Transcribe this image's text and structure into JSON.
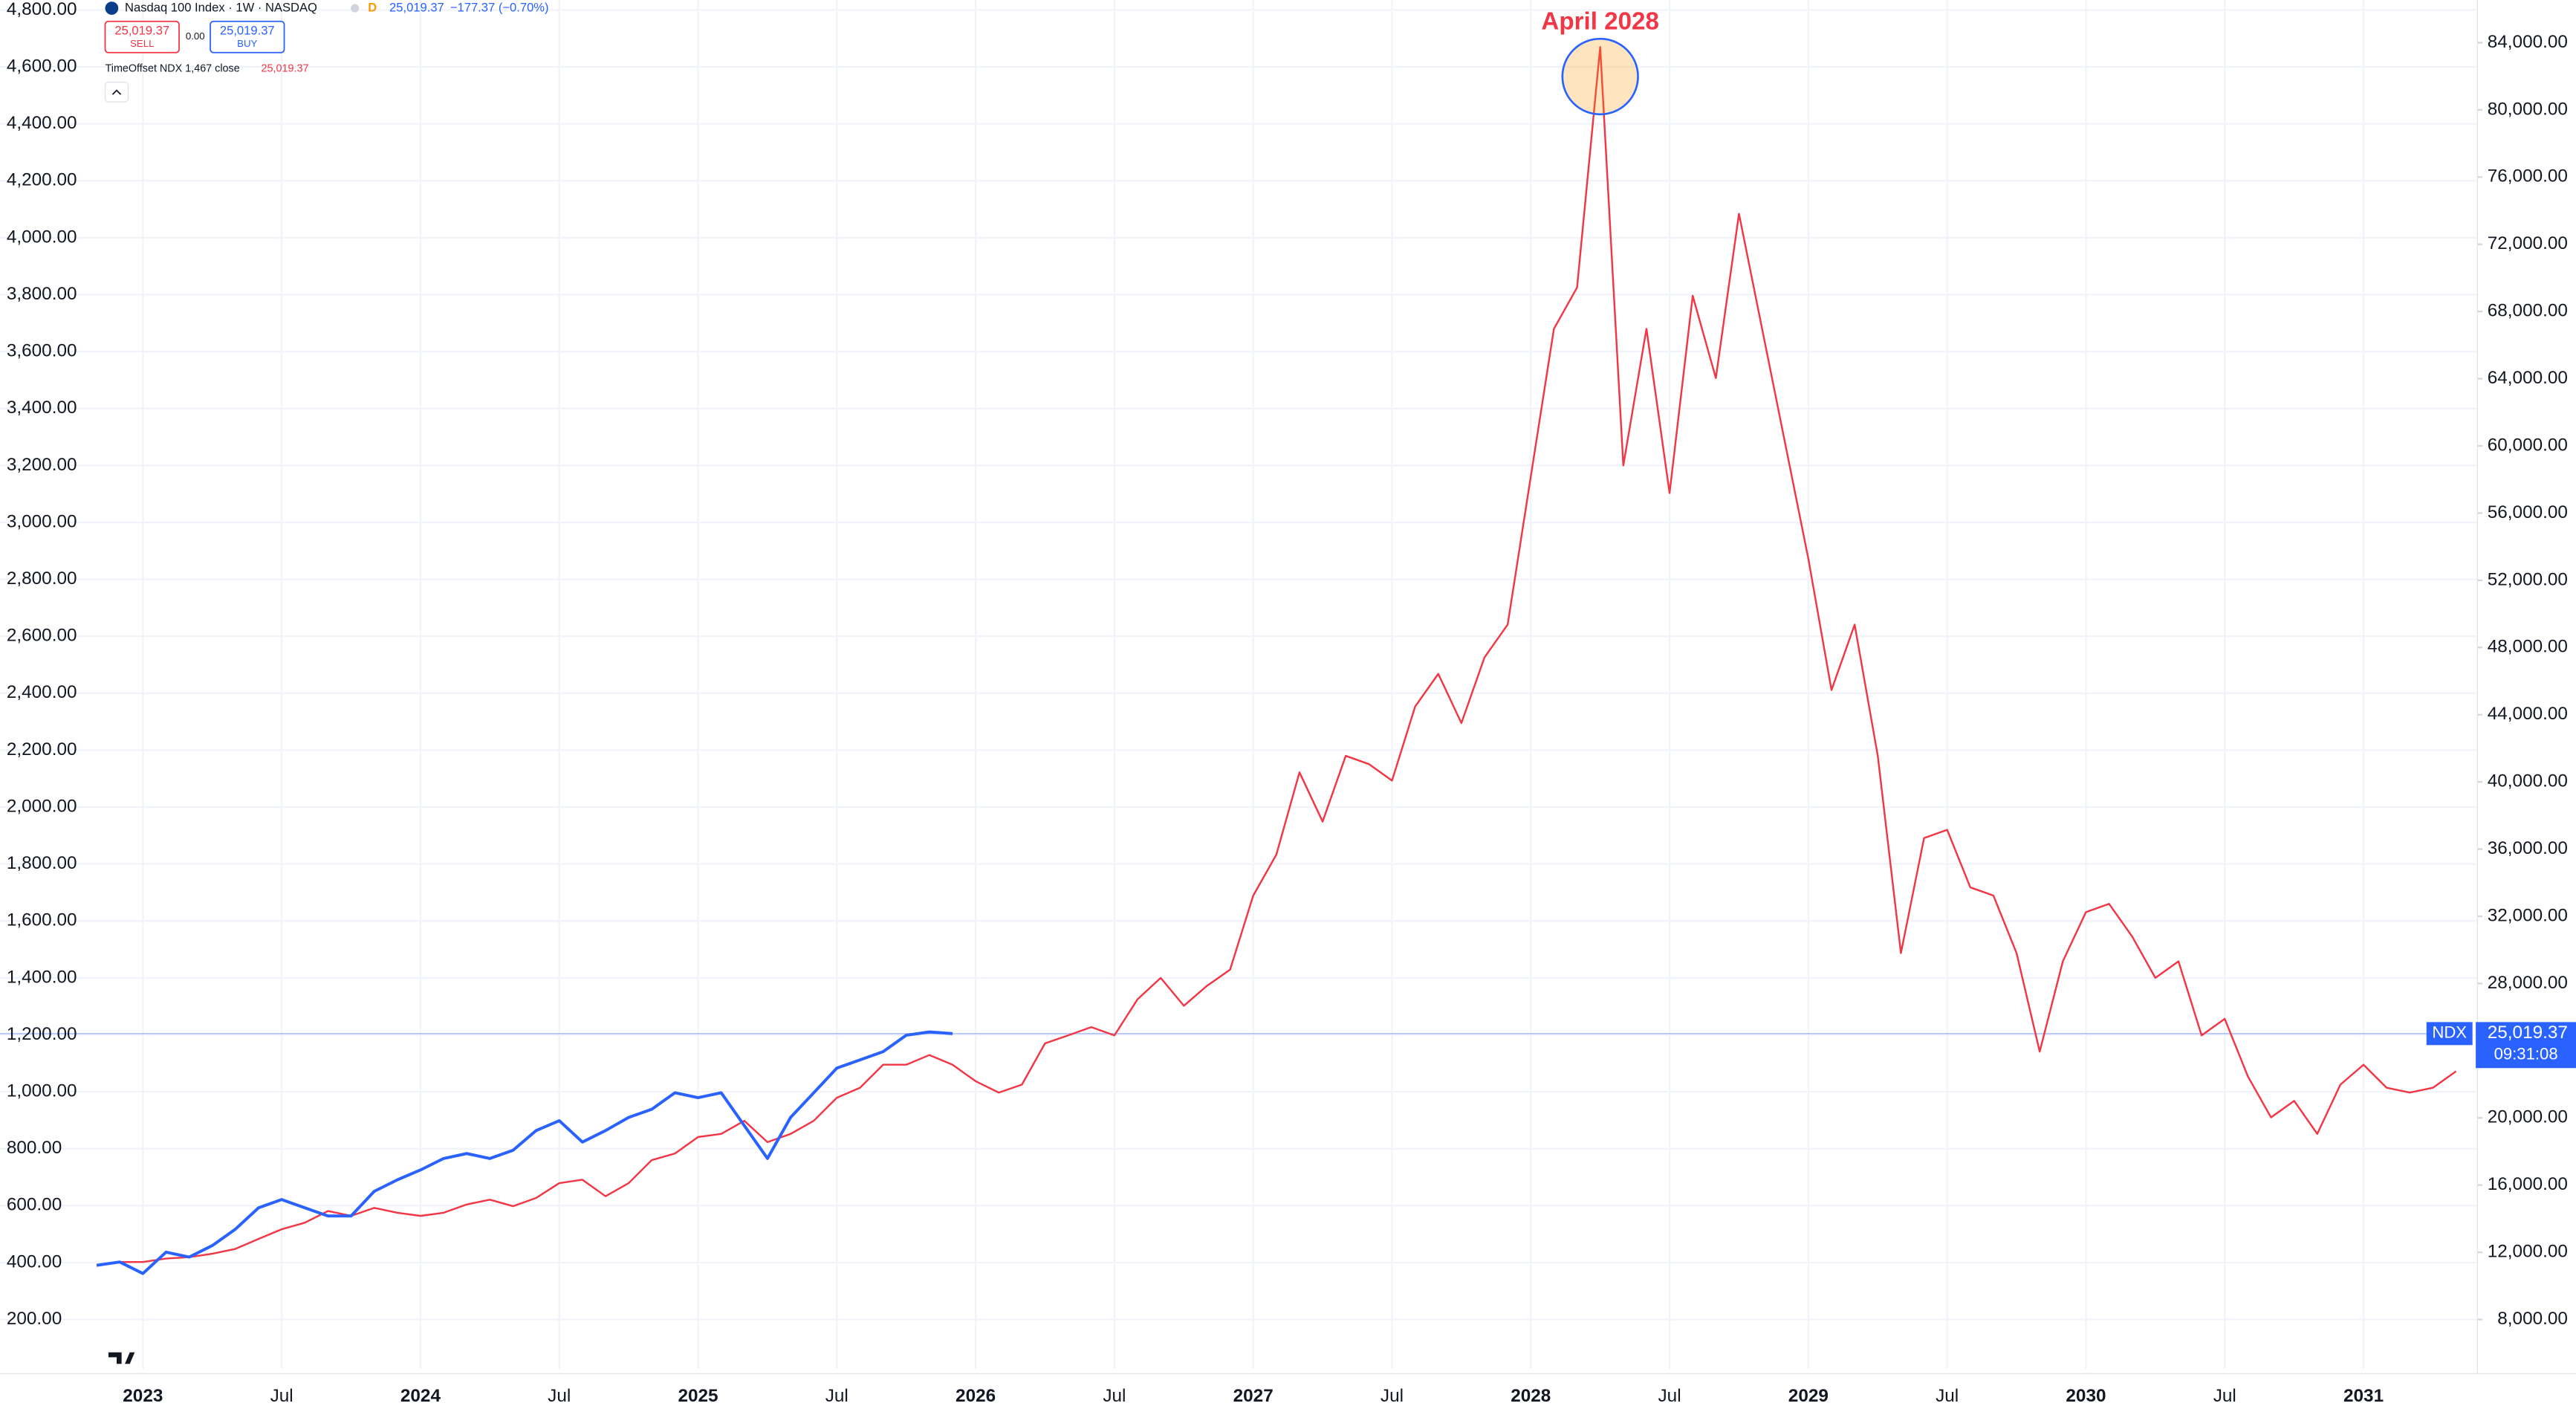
{
  "header": {
    "title": "Nasdaq 100 Index · 1W · NASDAQ",
    "session": "D",
    "price": "25,019.37",
    "change": "−177.37 (−0.70%)",
    "sell": {
      "price": "25,019.37",
      "label": "SELL"
    },
    "spread": "0.00",
    "buy": {
      "price": "25,019.37",
      "label": "BUY"
    }
  },
  "chart_data": {
    "type": "line",
    "x": [
      "2022-11",
      "2022-12",
      "2023-01",
      "2023-02",
      "2023-03",
      "2023-04",
      "2023-05",
      "2023-06",
      "2023-07",
      "2023-08",
      "2023-09",
      "2023-10",
      "2023-11",
      "2023-12",
      "2024-01",
      "2024-02",
      "2024-03",
      "2024-04",
      "2024-05",
      "2024-06",
      "2024-07",
      "2024-08",
      "2024-09",
      "2024-10",
      "2024-11",
      "2024-12",
      "2025-01",
      "2025-02",
      "2025-03",
      "2025-04",
      "2025-05",
      "2025-06",
      "2025-07",
      "2025-08",
      "2025-09",
      "2025-10",
      "2025-11",
      "2025-12",
      "2026-01",
      "2026-02",
      "2026-03",
      "2026-04",
      "2026-05",
      "2026-06",
      "2026-07",
      "2026-08",
      "2026-09",
      "2026-10",
      "2026-11",
      "2026-12",
      "2027-01",
      "2027-02",
      "2027-03",
      "2027-04",
      "2027-05",
      "2027-06",
      "2027-07",
      "2027-08",
      "2027-09",
      "2027-10",
      "2027-11",
      "2027-12",
      "2028-01",
      "2028-02",
      "2028-03",
      "2028-04",
      "2028-05",
      "2028-06",
      "2028-07",
      "2028-08",
      "2028-09",
      "2028-10",
      "2028-11",
      "2028-12",
      "2029-01",
      "2029-02",
      "2029-03",
      "2029-04",
      "2029-05",
      "2029-06",
      "2029-07",
      "2029-08",
      "2029-09",
      "2029-10",
      "2029-11",
      "2029-12",
      "2030-01",
      "2030-02",
      "2030-03",
      "2030-04",
      "2030-05",
      "2030-06",
      "2030-07",
      "2030-08",
      "2030-09",
      "2030-10",
      "2030-11",
      "2030-12",
      "2031-01",
      "2031-02",
      "2031-03",
      "2031-04",
      "2031-05"
    ],
    "series": [
      {
        "name": "TimeOffset NDX 1,467 close",
        "legend_value": "25,019.37",
        "color": "#f23645",
        "axis": "y",
        "values": [
          390,
          402,
          402,
          414,
          419,
          431,
          448,
          483,
          517,
          540,
          581,
          564,
          592,
          575,
          564,
          575,
          604,
          621,
          598,
          627,
          679,
          691,
          633,
          679,
          760,
          783,
          841,
          852,
          898,
          823,
          852,
          898,
          979,
          1014,
          1095,
          1095,
          1129,
          1095,
          1037,
          997,
          1025,
          1170,
          1198,
          1227,
          1198,
          1325,
          1400,
          1302,
          1372,
          1429,
          1689,
          1833,
          2122,
          1949,
          2180,
          2151,
          2093,
          2353,
          2468,
          2295,
          2526,
          2641,
          3161,
          3680,
          3825,
          4670,
          3200,
          3680,
          3103,
          3796,
          3507,
          4084,
          3680,
          3276,
          2872,
          2411,
          2641,
          2180,
          1487,
          1891,
          1920,
          1718,
          1689,
          1487,
          1141,
          1458,
          1631,
          1660,
          1545,
          1400,
          1458,
          1198,
          1256,
          1054,
          910,
          968,
          852,
          1025,
          1095,
          1014,
          997,
          1014,
          1072
        ]
      },
      {
        "name": "NDX",
        "color": "#2962ff",
        "axis": "y2",
        "values": [
          11228,
          11423,
          10739,
          12010,
          11717,
          12401,
          13379,
          14651,
          15140,
          14651,
          14162,
          14162,
          15629,
          16314,
          16901,
          17585,
          17879,
          17585,
          18074,
          19248,
          19835,
          18563,
          19248,
          20030,
          20519,
          21497,
          21204,
          21497,
          19541,
          17585,
          20030,
          21497,
          22965,
          23454,
          23943,
          24921,
          25117,
          25019.37,
          null,
          null,
          null,
          null,
          null,
          null,
          null,
          null,
          null,
          null,
          null,
          null,
          null,
          null,
          null,
          null,
          null,
          null,
          null,
          null,
          null,
          null,
          null,
          null,
          null,
          null,
          null,
          null,
          null,
          null,
          null,
          null,
          null,
          null,
          null,
          null,
          null,
          null,
          null,
          null,
          null,
          null,
          null,
          null,
          null,
          null,
          null,
          null,
          null,
          null,
          null,
          null,
          null,
          null,
          null,
          null,
          null,
          null,
          null,
          null,
          null,
          null,
          null,
          null,
          null
        ]
      }
    ],
    "xlim": [
      "2022-07",
      "2031-05"
    ],
    "xticks": [
      {
        "value": "2023-01",
        "label": "2023"
      },
      {
        "value": "2023-07",
        "label": "Jul"
      },
      {
        "value": "2024-01",
        "label": "2024"
      },
      {
        "value": "2024-07",
        "label": "Jul"
      },
      {
        "value": "2025-01",
        "label": "2025"
      },
      {
        "value": "2025-07",
        "label": "Jul"
      },
      {
        "value": "2026-01",
        "label": "2026"
      },
      {
        "value": "2026-07",
        "label": "Jul"
      },
      {
        "value": "2027-01",
        "label": "2027"
      },
      {
        "value": "2027-07",
        "label": "Jul"
      },
      {
        "value": "2028-01",
        "label": "2028"
      },
      {
        "value": "2028-07",
        "label": "Jul"
      },
      {
        "value": "2029-01",
        "label": "2029"
      },
      {
        "value": "2029-07",
        "label": "Jul"
      },
      {
        "value": "2030-01",
        "label": "2030"
      },
      {
        "value": "2030-07",
        "label": "Jul"
      },
      {
        "value": "2031-01",
        "label": "2031"
      }
    ],
    "ylim": [
      27,
      4835
    ],
    "yticks": [
      {
        "value": 200,
        "label": "200.00"
      },
      {
        "value": 400,
        "label": "400.00"
      },
      {
        "value": 600,
        "label": "600.00"
      },
      {
        "value": 800,
        "label": "800.00"
      },
      {
        "value": 1000,
        "label": "1,000.00"
      },
      {
        "value": 1200,
        "label": "1,200.00"
      },
      {
        "value": 1400,
        "label": "1,400.00"
      },
      {
        "value": 1600,
        "label": "1,600.00"
      },
      {
        "value": 1800,
        "label": "1,800.00"
      },
      {
        "value": 2000,
        "label": "2,000.00"
      },
      {
        "value": 2200,
        "label": "2,200.00"
      },
      {
        "value": 2400,
        "label": "2,400.00"
      },
      {
        "value": 2600,
        "label": "2,600.00"
      },
      {
        "value": 2800,
        "label": "2,800.00"
      },
      {
        "value": 3000,
        "label": "3,000.00"
      },
      {
        "value": 3200,
        "label": "3,200.00"
      },
      {
        "value": 3400,
        "label": "3,400.00"
      },
      {
        "value": 3600,
        "label": "3,600.00"
      },
      {
        "value": 3800,
        "label": "3,800.00"
      },
      {
        "value": 4000,
        "label": "4,000.00"
      },
      {
        "value": 4200,
        "label": "4,200.00"
      },
      {
        "value": 4400,
        "label": "4,400.00"
      },
      {
        "value": 4600,
        "label": "4,600.00"
      },
      {
        "value": 4800,
        "label": "4,800.00"
      }
    ],
    "y2lim": [
      5070,
      86540
    ],
    "y2ticks": [
      {
        "value": 8000,
        "label": "8,000.00"
      },
      {
        "value": 12000,
        "label": "12,000.00"
      },
      {
        "value": 16000,
        "label": "16,000.00"
      },
      {
        "value": 20000,
        "label": "20,000.00"
      },
      {
        "value": 24000,
        "label": "24,000.00"
      },
      {
        "value": 28000,
        "label": "28,000.00"
      },
      {
        "value": 32000,
        "label": "32,000.00"
      },
      {
        "value": 36000,
        "label": "36,000.00"
      },
      {
        "value": 40000,
        "label": "40,000.00"
      },
      {
        "value": 44000,
        "label": "44,000.00"
      },
      {
        "value": 48000,
        "label": "48,000.00"
      },
      {
        "value": 52000,
        "label": "52,000.00"
      },
      {
        "value": 56000,
        "label": "56,000.00"
      },
      {
        "value": 60000,
        "label": "60,000.00"
      },
      {
        "value": 64000,
        "label": "64,000.00"
      },
      {
        "value": 68000,
        "label": "68,000.00"
      },
      {
        "value": 72000,
        "label": "72,000.00"
      },
      {
        "value": 76000,
        "label": "76,000.00"
      },
      {
        "value": 80000,
        "label": "80,000.00"
      },
      {
        "value": 84000,
        "label": "84,000.00"
      }
    ],
    "grid": true,
    "price_line": {
      "value": 25019.37,
      "label": "25,019.37",
      "countdown": "09:31:08",
      "color": "#2962ff"
    },
    "annotation": {
      "text": "April 2028",
      "x": "2028-04"
    }
  }
}
